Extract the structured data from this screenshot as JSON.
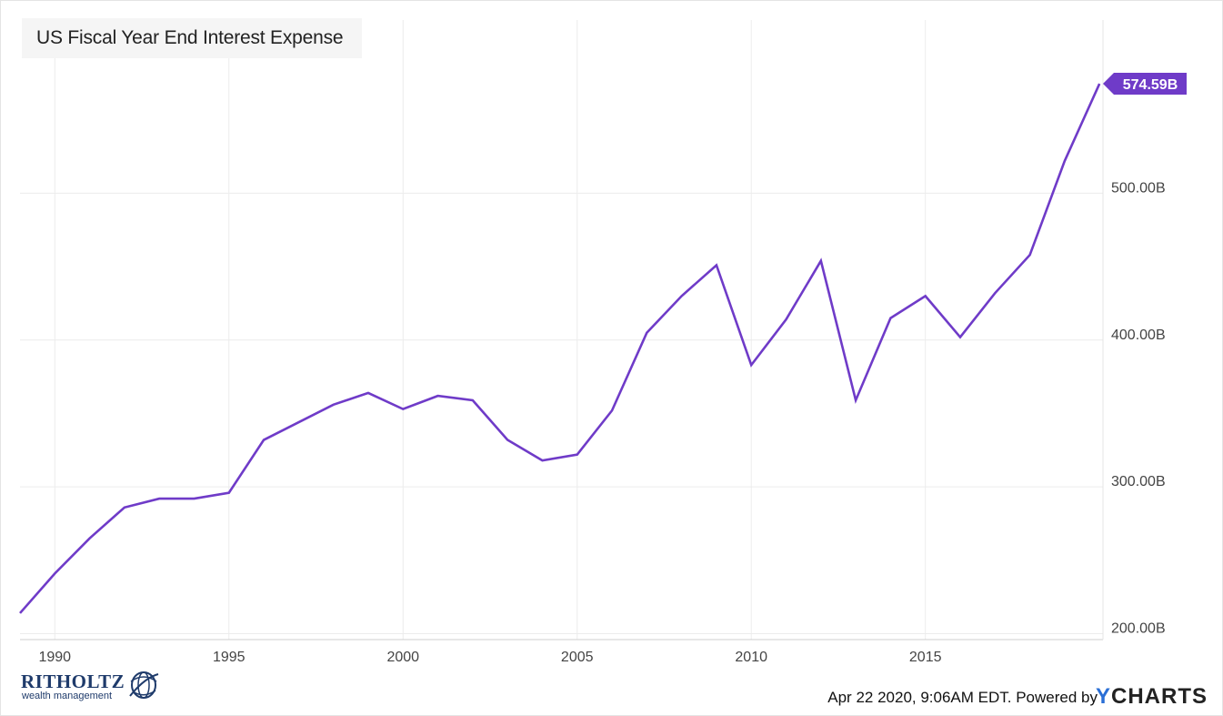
{
  "chart_data": {
    "type": "line",
    "title": "US Fiscal Year End Interest Expense",
    "x": [
      1989,
      1990,
      1991,
      1992,
      1993,
      1994,
      1995,
      1996,
      1997,
      1998,
      1999,
      2000,
      2001,
      2002,
      2003,
      2004,
      2005,
      2006,
      2007,
      2008,
      2009,
      2010,
      2011,
      2012,
      2013,
      2014,
      2015,
      2016,
      2017,
      2018,
      2019,
      2020
    ],
    "series": [
      {
        "values": [
          214,
          241,
          265,
          286,
          292,
          292,
          296,
          332,
          344,
          356,
          364,
          353,
          362,
          359,
          332,
          318,
          322,
          352,
          405,
          430,
          451,
          383,
          414,
          454,
          359,
          415,
          430,
          402,
          432,
          458,
          522,
          574.59
        ]
      }
    ],
    "xlim": [
      1989,
      2020.1
    ],
    "ylim": [
      196,
      618
    ],
    "x_ticks": [
      "1990",
      "1995",
      "2000",
      "2005",
      "2010",
      "2015"
    ],
    "y_ticks": [
      "200.00B",
      "300.00B",
      "400.00B",
      "500.00B"
    ],
    "last_value_label": "574.59B",
    "line_color": "#6f3bc8",
    "grid": true
  },
  "footer": {
    "timestamp": "Apr 22 2020, 9:06AM EDT. Powered by",
    "brand_y": "Y",
    "brand_rest": "CHARTS"
  },
  "logo": {
    "name": "RITHOLTZ",
    "subtitle": "wealth management"
  }
}
